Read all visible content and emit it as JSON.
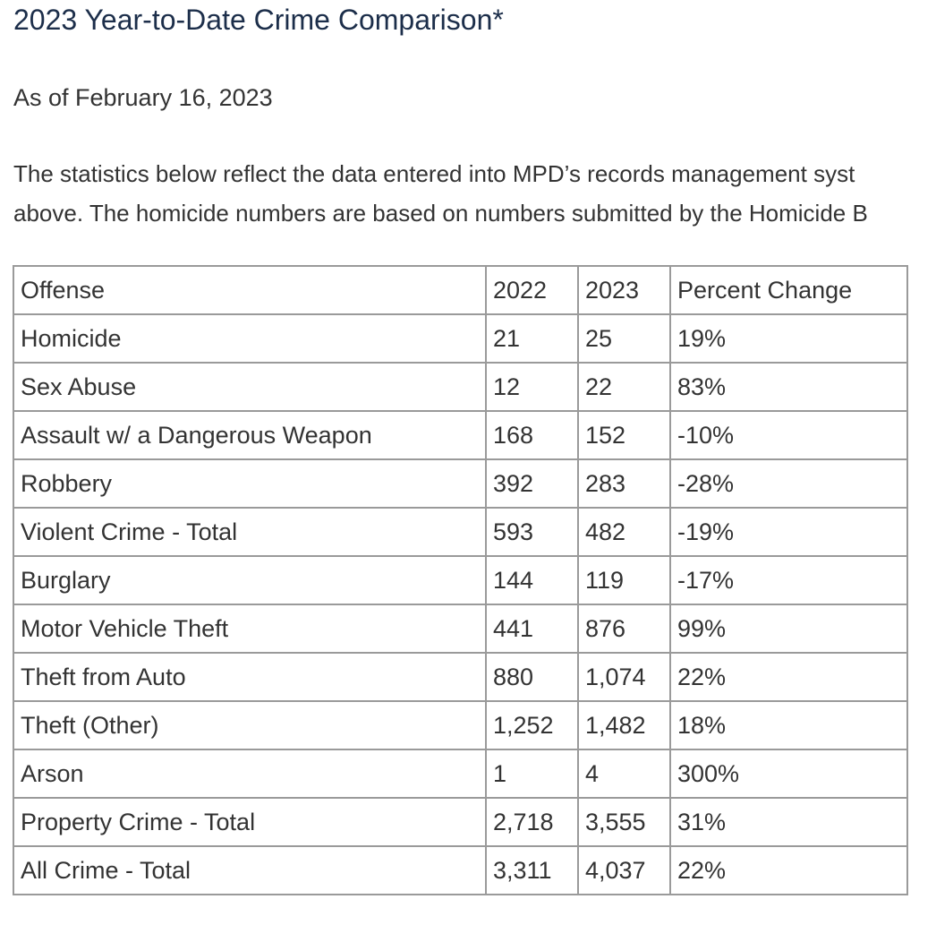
{
  "page": {
    "title": "2023 Year-to-Date Crime Comparison*",
    "as_of": "As of February 16, 2023",
    "intro_line1": "The statistics below reflect the data entered into MPD’s records management syst",
    "intro_line2": "above. The homicide numbers are based on numbers submitted by the Homicide B"
  },
  "table": {
    "headers": [
      "Offense",
      "2022",
      "2023",
      "Percent Change"
    ],
    "rows": [
      [
        "Homicide",
        "21",
        "25",
        "19%"
      ],
      [
        "Sex Abuse",
        "12",
        "22",
        "83%"
      ],
      [
        "Assault w/ a Dangerous Weapon",
        "168",
        "152",
        "-10%"
      ],
      [
        "Robbery",
        "392",
        "283",
        "-28%"
      ],
      [
        "Violent Crime - Total",
        "593",
        "482",
        "-19%"
      ],
      [
        "Burglary",
        "144",
        "119",
        "-17%"
      ],
      [
        "Motor Vehicle Theft",
        "441",
        "876",
        "99%"
      ],
      [
        "Theft from Auto",
        "880",
        "1,074",
        "22%"
      ],
      [
        "Theft (Other)",
        "1,252",
        "1,482",
        "18%"
      ],
      [
        "Arson",
        "1",
        "4",
        "300%"
      ],
      [
        "Property Crime - Total",
        "2,718",
        "3,555",
        "31%"
      ],
      [
        "All Crime - Total",
        "3,311",
        "4,037",
        "22%"
      ]
    ]
  }
}
